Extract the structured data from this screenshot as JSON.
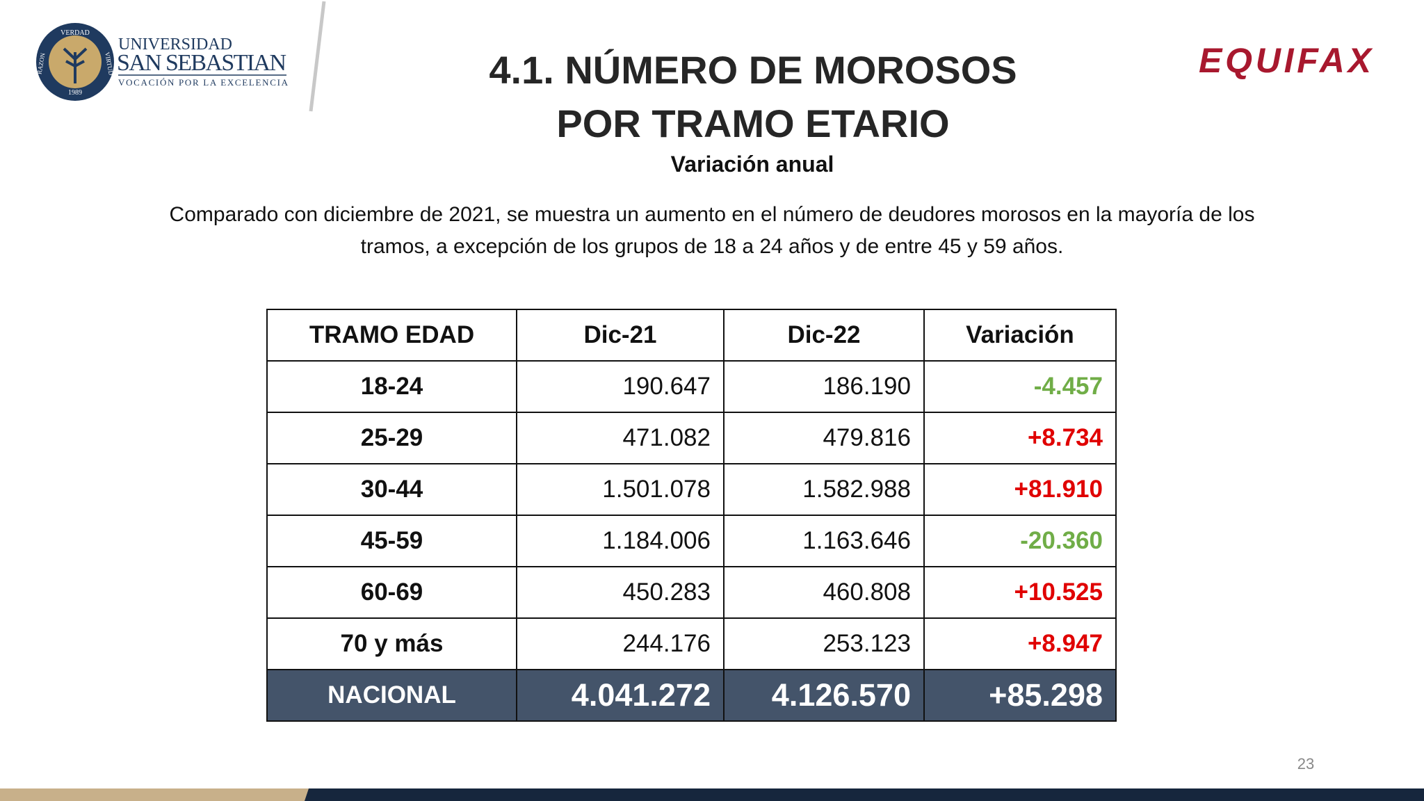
{
  "logo_left": {
    "seal": {
      "top": "VERDAD",
      "left": "RAZON",
      "right": "VIRTUD",
      "year": "1989"
    },
    "line1": "UNIVERSIDAD",
    "line2": "SAN SEBASTIAN",
    "line3": "VOCACIÓN POR LA EXCELENCIA"
  },
  "logo_right": "EQUIFAX",
  "header": {
    "title_lines": [
      "4.1. NÚMERO DE MOROSOS",
      "POR TRAMO ETARIO"
    ],
    "subtitle": "Variación anual"
  },
  "paragraph_lines": [
    "Comparado con diciembre de 2021, se muestra un aumento en el número de deudores morosos en la mayoría de los",
    "tramos, a excepción de los grupos de 18 a 24 años y de entre 45 y 59 años."
  ],
  "table": {
    "columns": [
      "TRAMO EDAD",
      "Dic-21",
      "Dic-22",
      "Variación"
    ],
    "rows": [
      {
        "cells": [
          "18-24",
          "190.647",
          "186.190",
          "-4.457"
        ],
        "color": "#70ad47"
      },
      {
        "cells": [
          "25-29",
          "471.082",
          "479.816",
          "+8.734"
        ],
        "color": "#e00000"
      },
      {
        "cells": [
          "30-44",
          "1.501.078",
          "1.582.988",
          "+81.910"
        ],
        "color": "#e00000"
      },
      {
        "cells": [
          "45-59",
          "1.184.006",
          "1.163.646",
          "-20.360"
        ],
        "color": "#70ad47"
      },
      {
        "cells": [
          "60-69",
          "450.283",
          "460.808",
          "+10.525"
        ],
        "color": "#e00000"
      },
      {
        "cells": [
          "70 y más",
          "244.176",
          "253.123",
          "+8.947"
        ],
        "color": "#e00000"
      }
    ],
    "total": {
      "cells": [
        "NACIONAL",
        "4.041.272",
        "4.126.570",
        "+85.298"
      ]
    }
  },
  "page_number": "23"
}
